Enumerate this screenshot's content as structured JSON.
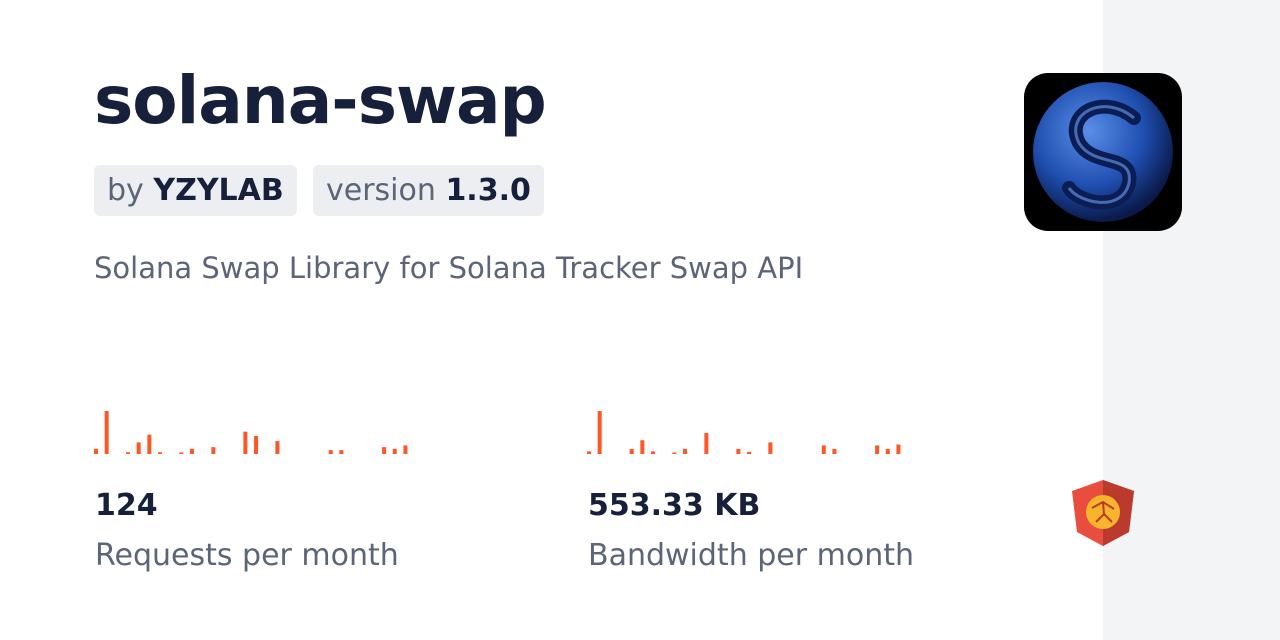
{
  "package": {
    "name": "solana-swap",
    "author_prefix": "by",
    "author": "YZYLAB",
    "version_prefix": "version",
    "version": "1.3.0",
    "description": "Solana Swap Library for Solana Tracker Swap API"
  },
  "stats": [
    {
      "value": "124",
      "label": "Requests per month",
      "sparkline": [
        12,
        100,
        0,
        4,
        27,
        45,
        4,
        0,
        2,
        12,
        0,
        16,
        0,
        0,
        52,
        42,
        0,
        30,
        0,
        0,
        0,
        0,
        9,
        9,
        0,
        0,
        0,
        16,
        12,
        20
      ]
    },
    {
      "value": "553.33 KB",
      "label": "Bandwidth per month",
      "sparkline": [
        6,
        100,
        0,
        0,
        12,
        32,
        6,
        0,
        2,
        12,
        0,
        49,
        0,
        0,
        12,
        5,
        0,
        27,
        0,
        0,
        0,
        0,
        20,
        12,
        0,
        0,
        0,
        20,
        12,
        22
      ]
    }
  ],
  "colors": {
    "accent": "#ff5627",
    "side_panel": "#f3f4f6",
    "logo_shield": "#e84d3d"
  },
  "icons": {
    "package_logo": "solana-swirl-logo",
    "brand": "jsdelivr-shield-icon"
  }
}
